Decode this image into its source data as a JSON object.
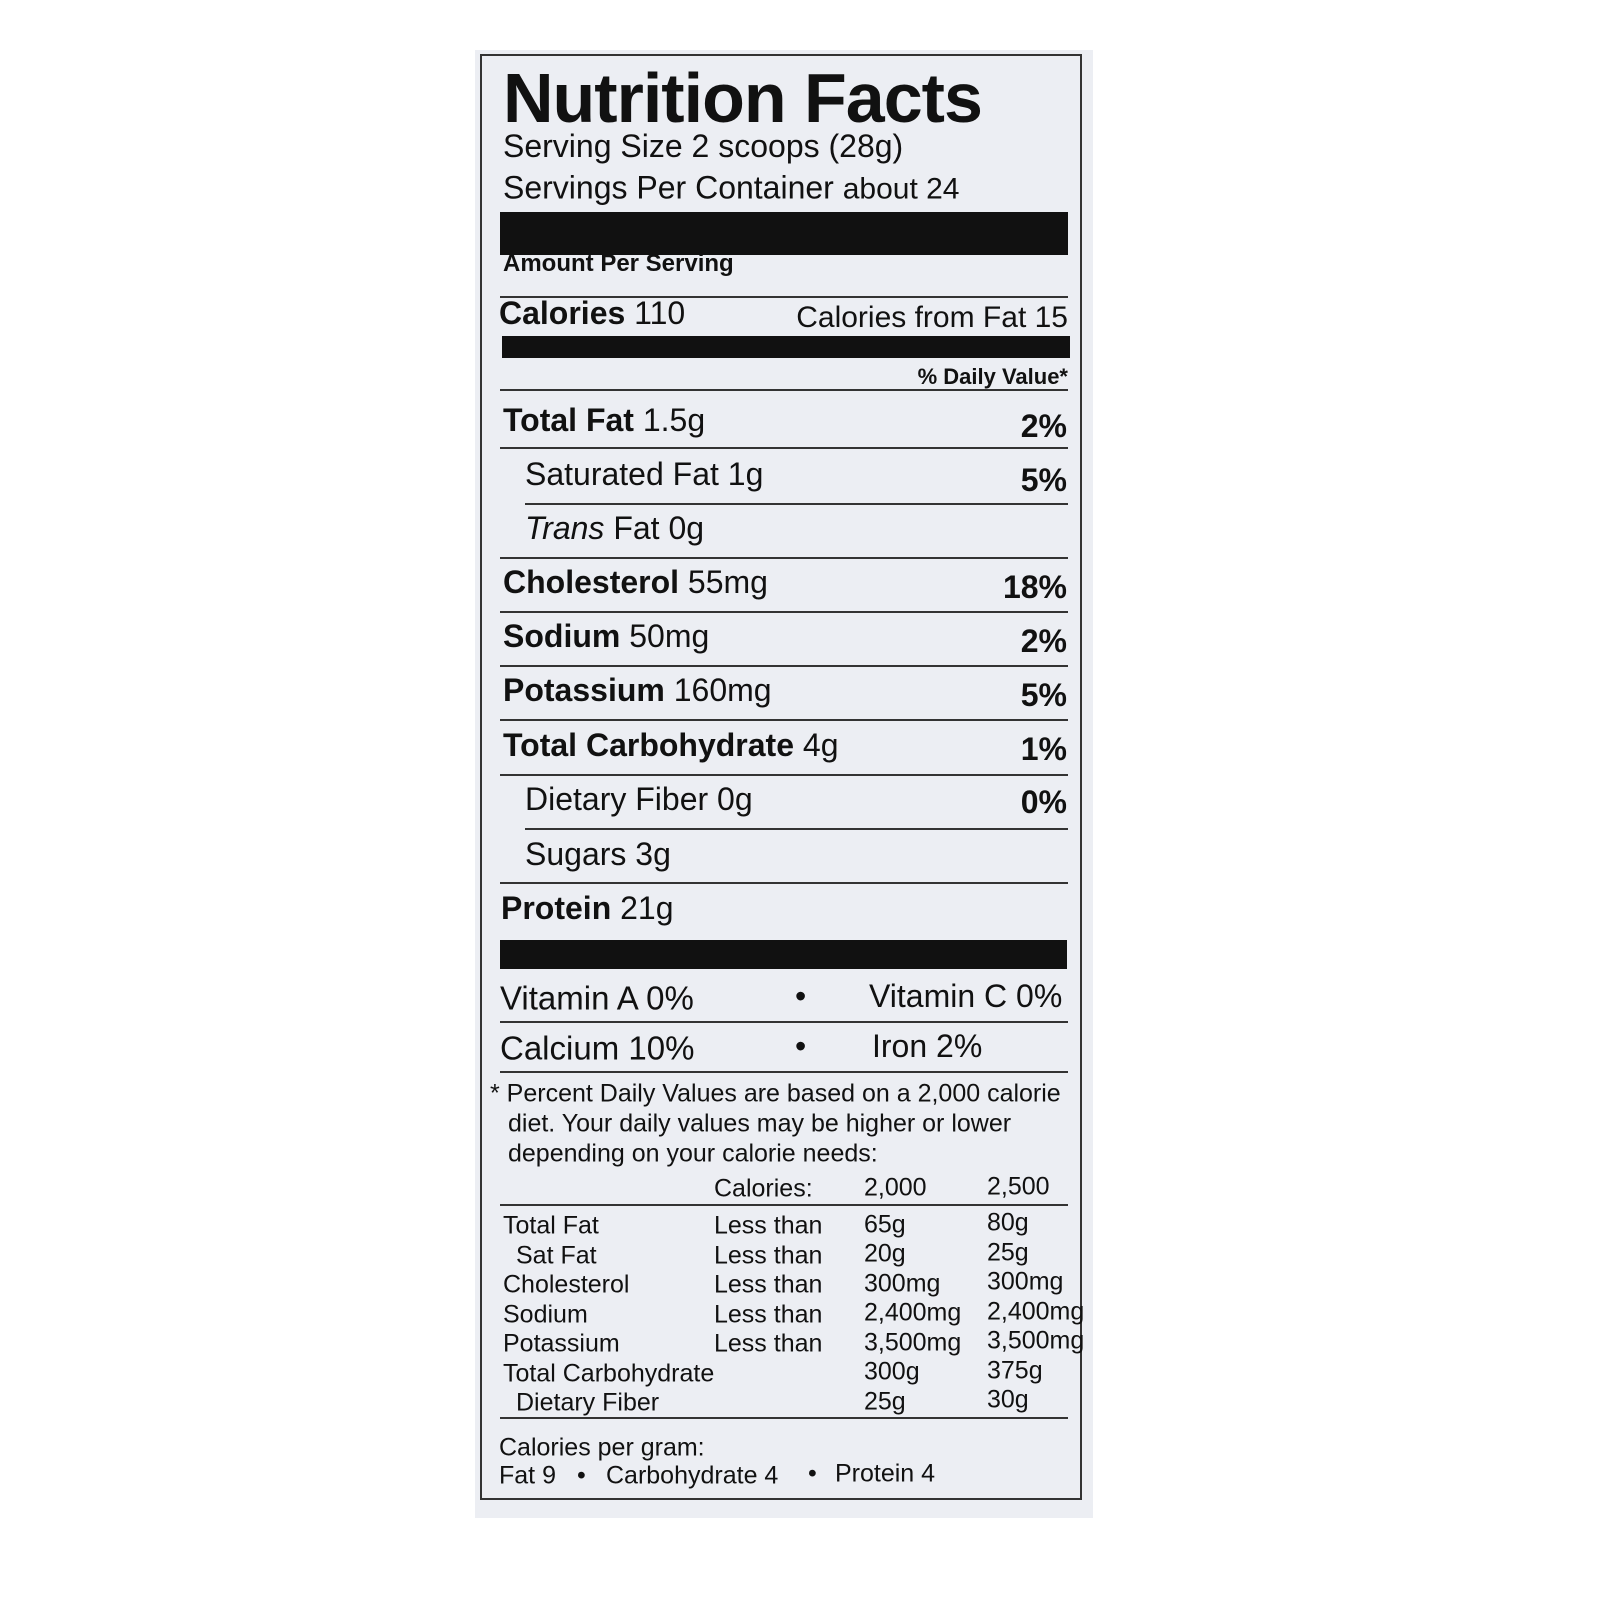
{
  "title": "Nutrition Facts",
  "serving_size": {
    "label": "Serving Size",
    "value": "2 scoops (28g)"
  },
  "servings_per_container": {
    "label": "Servings Per Container",
    "value": "about 24"
  },
  "amount_per_serving": "Amount Per Serving",
  "calories": {
    "label": "Calories",
    "value": "110"
  },
  "calories_from_fat": {
    "label": "Calories from Fat",
    "value": "15"
  },
  "daily_value_header": "% Daily Value*",
  "nutrients": [
    {
      "name": "Total Fat",
      "amount": "1.5g",
      "dv": "2%"
    },
    {
      "name": "Saturated Fat",
      "amount": "1g",
      "dv": "5%"
    },
    {
      "name_italic": "Trans",
      "name": "Fat",
      "amount": "0g"
    },
    {
      "name": "Cholesterol",
      "amount": "55mg",
      "dv": "18%"
    },
    {
      "name": "Sodium",
      "amount": "50mg",
      "dv": "2%"
    },
    {
      "name": "Potassium",
      "amount": "160mg",
      "dv": "5%"
    },
    {
      "name": "Total Carbohydrate",
      "amount": "4g",
      "dv": "1%"
    },
    {
      "name": "Dietary Fiber",
      "amount": "0g",
      "dv": "0%"
    },
    {
      "name": "Sugars",
      "amount": "3g"
    },
    {
      "name": "Protein",
      "amount": "21g"
    }
  ],
  "vitamins": [
    [
      {
        "name": "Vitamin A",
        "value": "0%"
      },
      {
        "name": "Vitamin C",
        "value": "0%"
      }
    ],
    [
      {
        "name": "Calcium",
        "value": "10%"
      },
      {
        "name": "Iron",
        "value": "2%"
      }
    ]
  ],
  "footnote": [
    "* Percent Daily Values are based on a 2,000 calorie",
    "diet. Your daily values may be higher or lower",
    "depending on your calorie needs:"
  ],
  "reference_table": {
    "header": [
      "Calories:",
      "2,000",
      "2,500"
    ],
    "rows": [
      [
        "Total Fat",
        "Less than",
        "65g",
        "80g"
      ],
      [
        "Sat Fat",
        "Less than",
        "20g",
        "25g"
      ],
      [
        "Cholesterol",
        "Less than",
        "300mg",
        "300mg"
      ],
      [
        "Sodium",
        "Less than",
        "2,400mg",
        "2,400mg"
      ],
      [
        "Potassium",
        "Less than",
        "3,500mg",
        "3,500mg"
      ],
      [
        "Total Carbohydrate",
        "",
        "300g",
        "375g"
      ],
      [
        "Dietary Fiber",
        "",
        "25g",
        "30g"
      ]
    ]
  },
  "calories_per_gram": {
    "label": "Calories per gram:",
    "items": [
      "Fat 9",
      "Carbohydrate 4",
      "Protein 4"
    ]
  }
}
